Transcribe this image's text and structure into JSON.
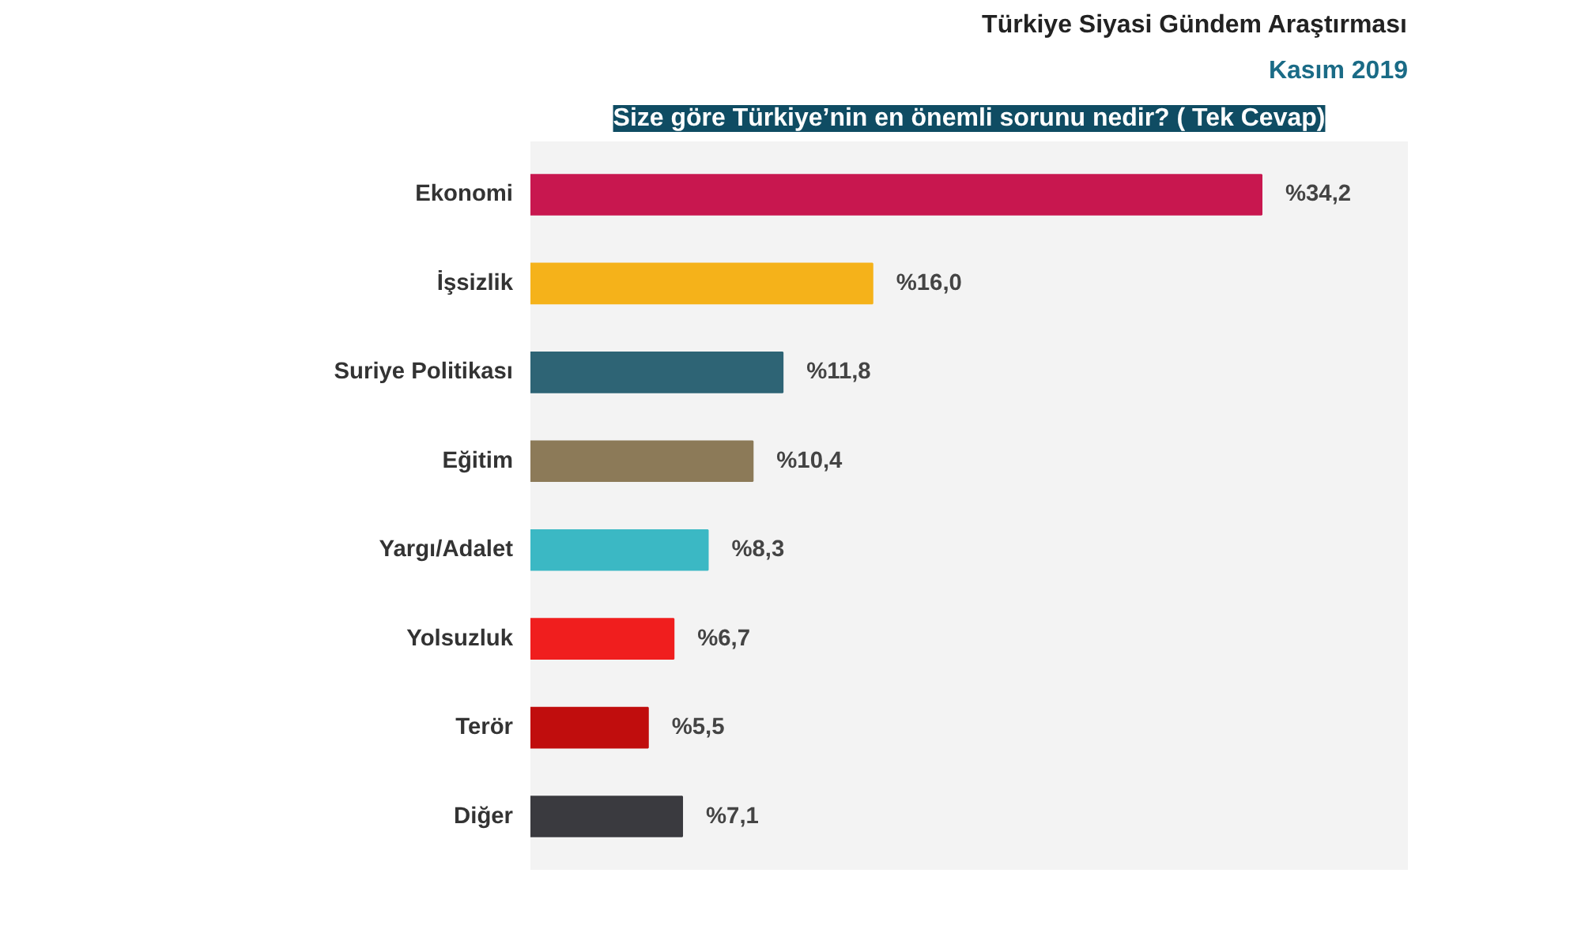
{
  "chart_data": {
    "type": "bar",
    "orientation": "horizontal",
    "title": "Türkiye Siyasi Gündem Araştırması",
    "subtitle": "Kasım 2019",
    "annotations": [
      "Size göre Türkiye’nin en önemli sorunu nedir? ( Tek Cevap)"
    ],
    "categories": [
      "Ekonomi",
      "İşsizlik",
      "Suriye Politikası",
      "Eğitim",
      "Yargı/Adalet",
      "Yolsuzluk",
      "Terör",
      "Diğer"
    ],
    "values": [
      34.2,
      16.0,
      11.8,
      10.4,
      8.3,
      6.7,
      5.5,
      7.1
    ],
    "colors": [
      "#c8174f",
      "#f5b21a",
      "#2e6475",
      "#8c7a58",
      "#3bb8c4",
      "#f01e1e",
      "#c00d0d",
      "#3a3a3f"
    ],
    "value_labels": [
      "%34,2",
      "%16,0",
      "%11,8",
      "%10,4",
      "%8,3",
      "%6,7",
      "%5,5",
      "%7,1"
    ],
    "grid": false
  }
}
